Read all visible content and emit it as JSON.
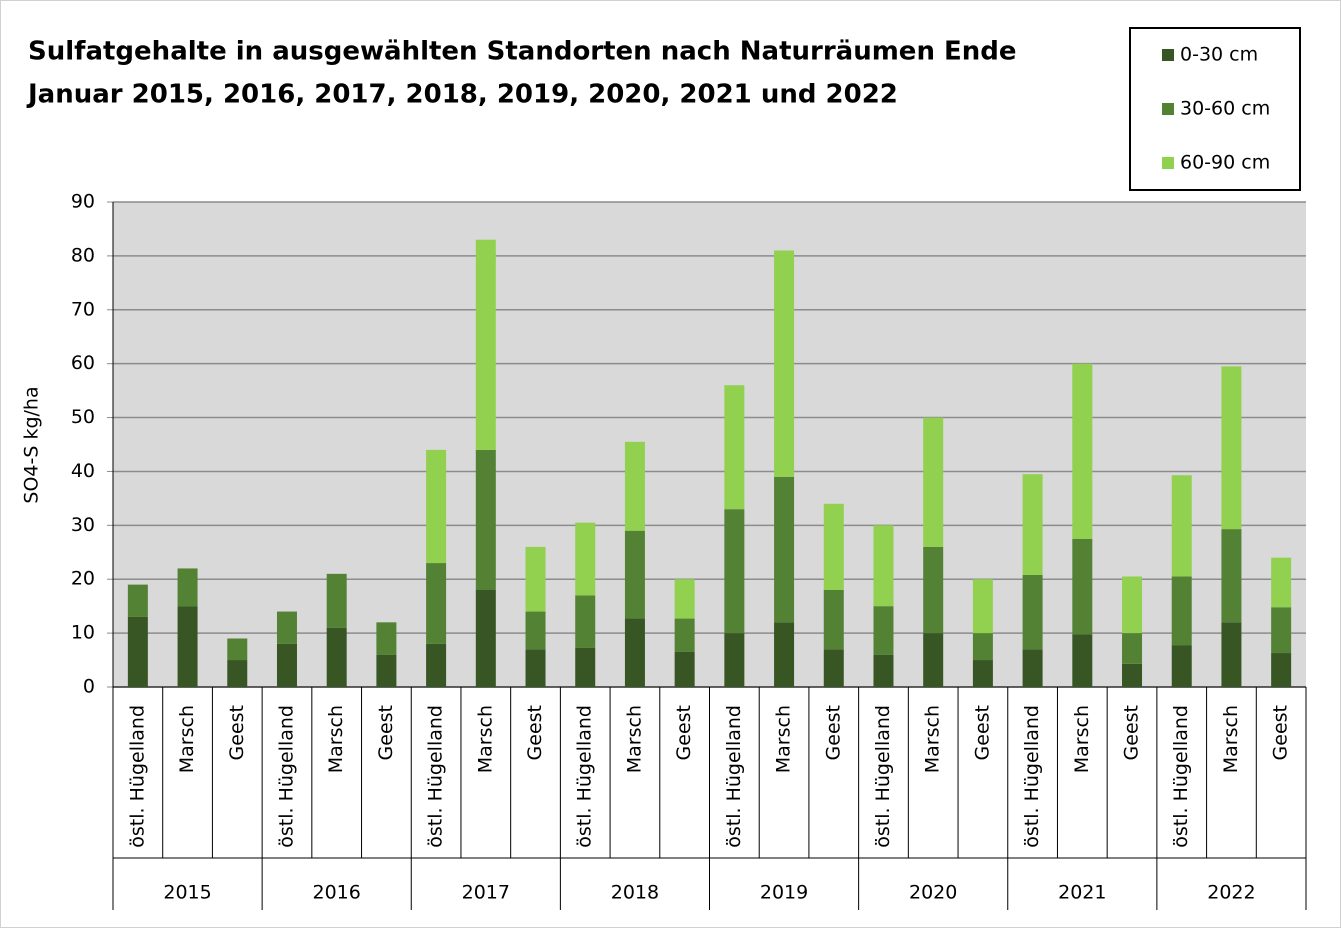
{
  "chart_data": {
    "type": "stacked_bar",
    "title": [
      "Sulfatgehalte in ausgewählten Standorten nach Naturräumen Ende",
      "Januar 2015, 2016, 2017, 2018, 2019, 2020, 2021 und 2022"
    ],
    "y_label": "SO4-S  kg/ha",
    "categories": [
      "östl. Hügelland",
      "Marsch",
      "Geest",
      "östl. Hügelland",
      "Marsch",
      "Geest",
      "östl. Hügelland",
      "Marsch",
      "Geest",
      "östl. Hügelland",
      "Marsch",
      "Geest",
      "östl. Hügelland",
      "Marsch",
      "Geest",
      "östl. Hügelland",
      "Marsch",
      "Geest",
      "östl. Hügelland",
      "Marsch",
      "Geest",
      "östl. Hügelland",
      "Marsch",
      "Geest"
    ],
    "groups": [
      "2015",
      "2016",
      "2017",
      "2018",
      "2019",
      "2020",
      "2021",
      "2022"
    ],
    "series": [
      {
        "name": "0-30 cm",
        "color": "#375623",
        "values": [
          13,
          15,
          5,
          8,
          11,
          6,
          8,
          18,
          7,
          7.3,
          12.7,
          6.5,
          10,
          12,
          7,
          6,
          10,
          5,
          7,
          9.8,
          4.3,
          7.7,
          12,
          6.3
        ]
      },
      {
        "name": "30-60 cm",
        "color": "#548235",
        "values": [
          6,
          7,
          4,
          6,
          10,
          6,
          15,
          26,
          7,
          9.7,
          16.3,
          6.2,
          23,
          27,
          11,
          9,
          16,
          5,
          13.8,
          17.7,
          5.7,
          12.8,
          17.3,
          8.5
        ]
      },
      {
        "name": "60-90 cm",
        "color": "#92d050",
        "values": [
          0,
          0,
          0,
          0,
          0,
          0,
          21,
          39,
          12,
          13.5,
          16.5,
          7.3,
          23,
          42,
          16,
          15,
          24,
          10,
          18.7,
          32.5,
          10.5,
          18.8,
          30.2,
          9.2
        ]
      }
    ],
    "ylim": [
      0,
      90
    ],
    "yticks": [
      0,
      10,
      20,
      30,
      40,
      50,
      60,
      70,
      80,
      90
    ],
    "grid": true,
    "legend": "top-right"
  }
}
